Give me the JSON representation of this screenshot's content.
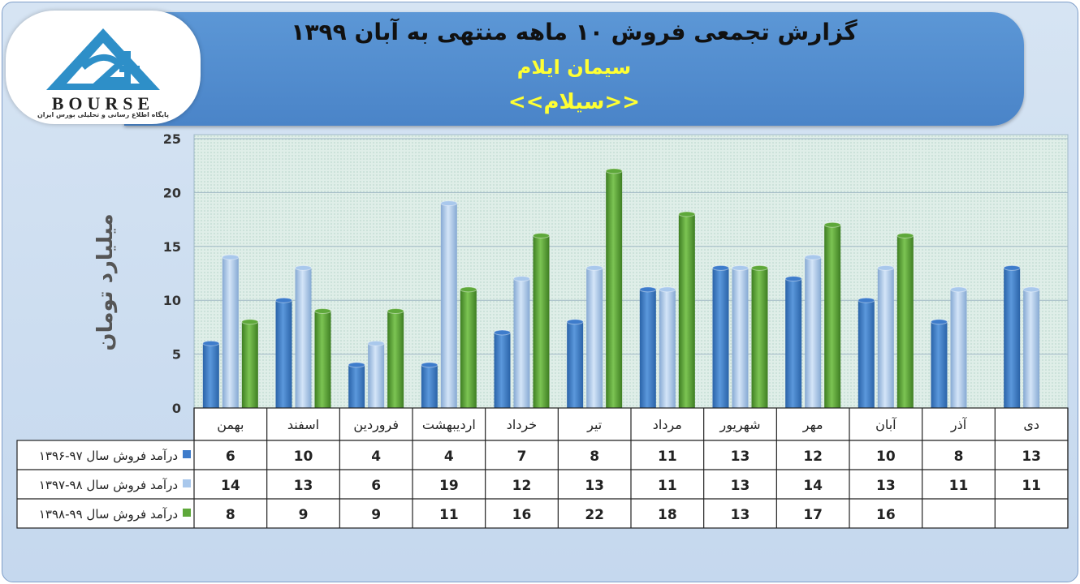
{
  "header": {
    "title": "گزارش تجمعی فروش ۱۰ ماهه منتهی به آبان ۱۳۹۹",
    "company": "سیمان ایلام",
    "symbol": "<<سیلام>>"
  },
  "logo": {
    "text": "BOURSE",
    "subtitle": "پایگاه اطلاع رسانی و تحلیلی بورس ایران"
  },
  "colors": {
    "series1": "#3e7ccb",
    "series2": "#a9c8ec",
    "series3": "#5ea83a"
  },
  "chart_data": {
    "type": "bar",
    "ylabel": "میلیارد تومان",
    "ylim": [
      0,
      25
    ],
    "yticks": [
      "0",
      "5",
      "10",
      "15",
      "20",
      "25"
    ],
    "categories": [
      "بهمن",
      "اسفند",
      "فروردین",
      "اردیبهشت",
      "خرداد",
      "تیر",
      "مرداد",
      "شهریور",
      "مهر",
      "آبان",
      "آذر",
      "دی"
    ],
    "series": [
      {
        "name": "درآمد فروش سال ۹۷-۱۳۹۶",
        "values": [
          6,
          10,
          4,
          4,
          7,
          8,
          11,
          13,
          12,
          10,
          8,
          13
        ],
        "labels": [
          "6",
          "10",
          "4",
          "4",
          "7",
          "8",
          "11",
          "13",
          "12",
          "10",
          "8",
          "13"
        ]
      },
      {
        "name": "درآمد فروش سال ۹۸-۱۳۹۷",
        "values": [
          14,
          13,
          6,
          19,
          12,
          13,
          11,
          13,
          14,
          13,
          11,
          11
        ],
        "labels": [
          "14",
          "13",
          "6",
          "19",
          "12",
          "13",
          "11",
          "13",
          "14",
          "13",
          "11",
          "11"
        ]
      },
      {
        "name": "درآمد فروش سال ۹۹-۱۳۹۸",
        "values": [
          8,
          9,
          9,
          11,
          16,
          22,
          18,
          13,
          17,
          16,
          null,
          null
        ],
        "labels": [
          "8",
          "9",
          "9",
          "11",
          "16",
          "22",
          "18",
          "13",
          "17",
          "16",
          "",
          ""
        ]
      }
    ],
    "legend": "data-table"
  }
}
